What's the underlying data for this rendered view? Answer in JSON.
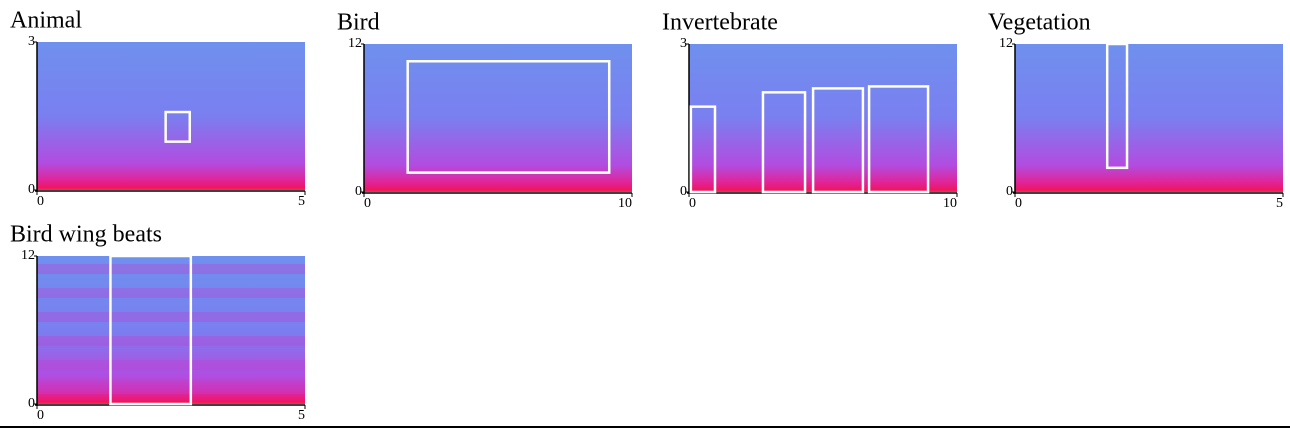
{
  "chart_data": [
    {
      "type": "spectrogram",
      "title": "Animal",
      "xlim": [
        0,
        5
      ],
      "ylim": [
        0,
        3
      ],
      "xticks": [
        0,
        5
      ],
      "yticks": [
        0,
        3
      ],
      "box_color": "#ffffff",
      "boxes": [
        {
          "x": [
            2.4,
            2.85
          ],
          "y": [
            0.98,
            1.58
          ]
        }
      ]
    },
    {
      "type": "spectrogram",
      "title": "Bird",
      "xlim": [
        0,
        10
      ],
      "ylim": [
        0,
        12
      ],
      "xticks": [
        0,
        10
      ],
      "yticks": [
        0,
        12
      ],
      "box_color": "#ffffff",
      "boxes": [
        {
          "x": [
            1.63,
            9.15
          ],
          "y": [
            1.57,
            10.6
          ]
        }
      ]
    },
    {
      "type": "spectrogram",
      "title": "Invertebrate",
      "xlim": [
        0,
        10
      ],
      "ylim": [
        0,
        3
      ],
      "xticks": [
        0,
        10
      ],
      "yticks": [
        0,
        3
      ],
      "box_color": "#ffffff",
      "boxes": [
        {
          "x": [
            0.07,
            0.97
          ],
          "y": [
            0,
            1.73
          ]
        },
        {
          "x": [
            2.76,
            4.33
          ],
          "y": [
            0,
            2.02
          ]
        },
        {
          "x": [
            4.63,
            6.49
          ],
          "y": [
            0,
            2.1
          ]
        },
        {
          "x": [
            6.72,
            8.92
          ],
          "y": [
            0,
            2.14
          ]
        }
      ]
    },
    {
      "type": "spectrogram",
      "title": "Vegetation",
      "xlim": [
        0,
        5
      ],
      "ylim": [
        0,
        12
      ],
      "xticks": [
        0,
        5
      ],
      "yticks": [
        0,
        12
      ],
      "box_color": "#ffffff",
      "boxes": [
        {
          "x": [
            1.72,
            2.09
          ],
          "y": [
            1.96,
            12
          ]
        }
      ]
    },
    {
      "type": "spectrogram",
      "title": "Bird wing beats",
      "xlim": [
        0,
        5
      ],
      "ylim": [
        0,
        12
      ],
      "xticks": [
        0,
        5
      ],
      "yticks": [
        0,
        12
      ],
      "box_color": "#ffffff",
      "boxes": [
        {
          "x": [
            1.37,
            2.87
          ],
          "y": [
            0,
            12
          ]
        }
      ]
    }
  ]
}
